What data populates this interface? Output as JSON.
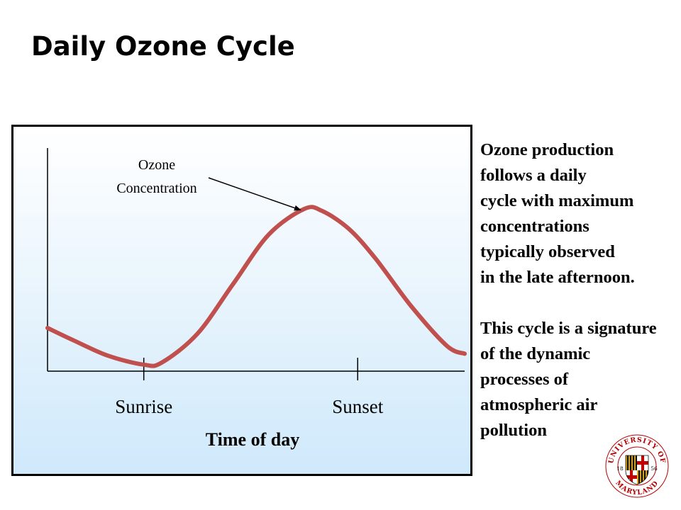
{
  "slide": {
    "title": "Daily Ozone Cycle",
    "body_lines": [
      "Ozone production",
      "follows a daily",
      "cycle with maximum",
      "concentrations",
      "typically observed",
      "in the late afternoon.",
      "",
      "This cycle is a signature",
      "of the dynamic",
      "processes of",
      "atmospheric air",
      "pollution"
    ]
  },
  "logo": {
    "text_top": "UNIVERSITY OF",
    "text_bottom": "MARYLAND",
    "year_left": "18",
    "year_right": "56"
  },
  "chart_data": {
    "type": "line",
    "xlabel": "Time of day",
    "ylabel": "",
    "x_ticks": [
      {
        "label": "Sunrise",
        "x": 6
      },
      {
        "label": "Sunset",
        "x": 18
      }
    ],
    "xlim": [
      0.6,
      24
    ],
    "ylim": [
      0,
      100
    ],
    "annotation": {
      "lines": [
        "Ozone",
        "Concentration"
      ],
      "points_to_x": 15.6
    },
    "series": [
      {
        "color": "#c0504d",
        "x": [
          0.6,
          2,
          4,
          6,
          7,
          9,
          11,
          13,
          15,
          16,
          17.5,
          19,
          21,
          23,
          24
        ],
        "y": [
          20,
          14,
          6,
          1.5,
          2.5,
          17,
          42,
          67,
          80,
          79,
          70,
          55,
          31,
          11,
          7
        ]
      }
    ]
  }
}
